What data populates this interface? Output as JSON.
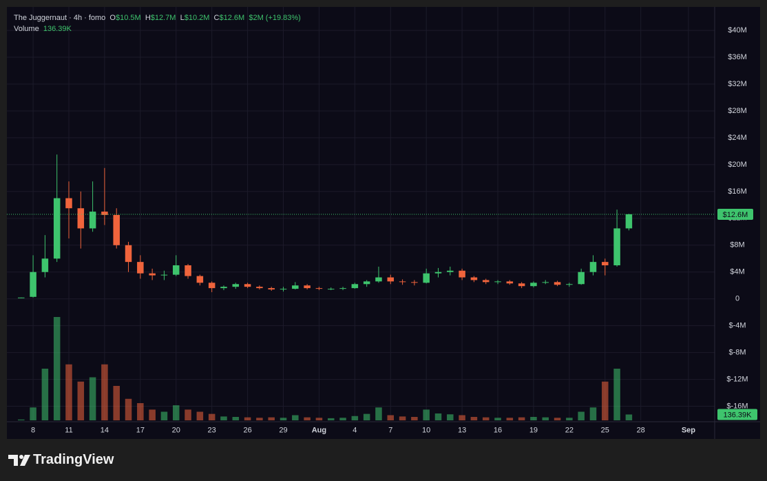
{
  "header": {
    "symbol": "The Juggernaut · 4h · fomo",
    "ohlc": [
      {
        "label": "O",
        "value": "$10.5M"
      },
      {
        "label": "H",
        "value": "$12.7M"
      },
      {
        "label": "L",
        "value": "$10.2M"
      },
      {
        "label": "C",
        "value": "$12.6M"
      }
    ],
    "change": "$2M (+19.83%)",
    "volume_label": "Volume",
    "volume_value": "136.39K"
  },
  "chart_data": {
    "type": "candlestick",
    "x": [
      7,
      8,
      9,
      10,
      11,
      12,
      13,
      14,
      15,
      16,
      17,
      18,
      19,
      20,
      21,
      22,
      23,
      24,
      25,
      26,
      27,
      28,
      29,
      30,
      31,
      32,
      33,
      34,
      35,
      36,
      37,
      38,
      39,
      40,
      41,
      42,
      43,
      44,
      45,
      46,
      47,
      48,
      49,
      50,
      51,
      52,
      53,
      54,
      55,
      56,
      57,
      58
    ],
    "open": [
      0.1,
      0.3,
      4.0,
      6.0,
      15.0,
      13.5,
      10.5,
      13.0,
      12.5,
      8.0,
      5.5,
      3.8,
      3.5,
      3.6,
      5.0,
      3.4,
      2.4,
      1.6,
      1.8,
      2.2,
      1.8,
      1.6,
      1.4,
      1.5,
      2.0,
      1.6,
      1.5,
      1.5,
      1.6,
      2.2,
      2.6,
      3.2,
      2.6,
      2.5,
      2.4,
      3.8,
      4.0,
      4.2,
      3.2,
      2.8,
      2.5,
      2.6,
      2.3,
      1.9,
      2.4,
      2.5,
      2.1,
      2.2,
      4.0,
      5.5,
      5.0,
      10.5
    ],
    "high": [
      0.2,
      6.5,
      9.5,
      21.5,
      17.5,
      16.0,
      17.5,
      19.5,
      13.5,
      8.5,
      6.5,
      4.5,
      4.2,
      6.5,
      5.2,
      3.6,
      2.6,
      2.0,
      2.4,
      2.4,
      2.0,
      1.8,
      1.8,
      2.5,
      2.2,
      1.8,
      1.7,
      1.8,
      2.4,
      2.8,
      4.8,
      3.6,
      2.9,
      2.8,
      4.5,
      4.6,
      4.8,
      4.5,
      3.4,
      3.0,
      2.8,
      2.8,
      2.5,
      2.6,
      2.8,
      2.7,
      2.4,
      4.5,
      6.5,
      6.0,
      13.3,
      12.7
    ],
    "low": [
      0.1,
      0.2,
      3.2,
      5.5,
      9.0,
      7.5,
      10.0,
      11.0,
      7.5,
      4.0,
      3.0,
      2.8,
      2.8,
      3.4,
      3.0,
      2.0,
      1.0,
      1.3,
      1.5,
      1.6,
      1.4,
      1.2,
      1.1,
      1.4,
      1.4,
      1.3,
      1.3,
      1.3,
      1.5,
      1.8,
      2.4,
      2.2,
      2.1,
      2.0,
      2.3,
      3.2,
      3.5,
      2.8,
      2.5,
      2.2,
      2.2,
      2.1,
      1.6,
      1.7,
      2.2,
      1.9,
      1.8,
      2.1,
      3.5,
      3.5,
      4.8,
      10.2
    ],
    "close": [
      0.2,
      4.0,
      6.0,
      15.0,
      13.5,
      10.5,
      13.0,
      12.5,
      8.0,
      5.5,
      3.8,
      3.5,
      3.6,
      5.0,
      3.4,
      2.4,
      1.6,
      1.8,
      2.2,
      1.8,
      1.6,
      1.4,
      1.5,
      2.0,
      1.6,
      1.5,
      1.5,
      1.6,
      2.2,
      2.6,
      3.2,
      2.6,
      2.5,
      2.4,
      3.8,
      4.0,
      4.2,
      3.2,
      2.8,
      2.5,
      2.6,
      2.3,
      1.9,
      2.4,
      2.5,
      2.1,
      2.2,
      4.0,
      5.5,
      5.0,
      10.5,
      12.6
    ],
    "up_color": "#3ec46d",
    "down_color": "#f0643c",
    "volume": {
      "axis": "y2",
      "values": [
        20,
        300,
        1200,
        2400,
        1300,
        900,
        1000,
        1300,
        800,
        500,
        400,
        250,
        200,
        350,
        250,
        200,
        150,
        90,
        80,
        70,
        60,
        70,
        60,
        120,
        70,
        60,
        50,
        60,
        100,
        150,
        300,
        120,
        90,
        80,
        250,
        160,
        140,
        120,
        80,
        70,
        60,
        60,
        70,
        80,
        70,
        60,
        60,
        200,
        300,
        900,
        1200,
        136.39
      ]
    },
    "y2lim": [
      0,
      9600
    ],
    "last_price_label": "$12.6M",
    "last_volume_label": "136.39K",
    "xlim": [
      5.8,
      65.2
    ],
    "xticks": [
      8,
      11,
      14,
      17,
      20,
      23,
      26,
      29,
      {
        "value": 32,
        "label": "Aug"
      },
      {
        "value": 35,
        "label": "4"
      },
      {
        "value": 38,
        "label": "7"
      },
      {
        "value": 41,
        "label": "10"
      },
      {
        "value": 44,
        "label": "13"
      },
      {
        "value": 47,
        "label": "16"
      },
      {
        "value": 50,
        "label": "19"
      },
      {
        "value": 53,
        "label": "22"
      },
      {
        "value": 56,
        "label": "25"
      },
      {
        "value": 59,
        "label": "28"
      },
      {
        "value": 63,
        "label": "Sep"
      }
    ],
    "ylim": [
      -18.1,
      43.5
    ],
    "yticks": [
      {
        "value": -16,
        "label": "$-16M"
      },
      {
        "value": -12,
        "label": "$-12M"
      },
      {
        "value": -8,
        "label": "$-8M"
      },
      {
        "value": -4,
        "label": "$-4M"
      },
      0,
      {
        "value": 4,
        "label": "$4M"
      },
      {
        "value": 8,
        "label": "$8M"
      },
      {
        "value": 12,
        "label": "$12M"
      },
      {
        "value": 16,
        "label": "$16M"
      },
      {
        "value": 20,
        "label": "$20M"
      },
      {
        "value": 24,
        "label": "$24M"
      },
      {
        "value": 28,
        "label": "$28M"
      },
      {
        "value": 32,
        "label": "$32M"
      },
      {
        "value": 36,
        "label": "$36M"
      },
      {
        "value": 40,
        "label": "$40M"
      }
    ],
    "grid": true
  },
  "footer": {
    "brand": "TradingView"
  }
}
